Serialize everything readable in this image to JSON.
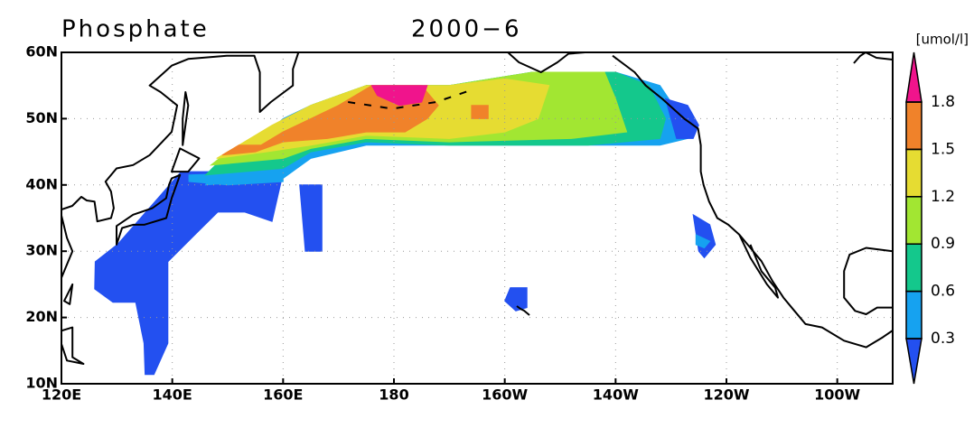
{
  "chart_data": {
    "type": "map",
    "title": "Phosphate",
    "subtitle": "2000−6",
    "unit_label": "[umol/l]",
    "xlim": [
      120,
      270
    ],
    "ylim": [
      10,
      60
    ],
    "xticks": [
      {
        "value": 120,
        "label": "120E"
      },
      {
        "value": 140,
        "label": "140E"
      },
      {
        "value": 160,
        "label": "160E"
      },
      180,
      {
        "value": 200,
        "label": "160W"
      },
      {
        "value": 220,
        "label": "140W"
      },
      {
        "value": 240,
        "label": "120W"
      },
      {
        "value": 260,
        "label": "100W"
      }
    ],
    "yticks": [
      {
        "value": 10,
        "label": "10N"
      },
      {
        "value": 20,
        "label": "20N"
      },
      {
        "value": 30,
        "label": "30N"
      },
      {
        "value": 40,
        "label": "40N"
      },
      {
        "value": 50,
        "label": "50N"
      },
      {
        "value": 60,
        "label": "60N"
      }
    ],
    "grid": true,
    "levels": [
      0.3,
      0.6,
      0.9,
      1.2,
      1.5,
      1.8
    ],
    "colors": [
      "#2350f0",
      "#16a2f0",
      "#14c88c",
      "#a2e632",
      "#e6dc32",
      "#f0822a",
      "#f0148c"
    ],
    "regions": [
      {
        "level": 0,
        "lon": [
          141.6,
          130.2,
          126.1,
          126,
          129.3,
          133.4,
          134.9,
          135.1,
          136.7,
          139.2,
          139.2,
          144.1,
          148.2,
          153.1,
          158,
          159.7,
          158
        ],
        "lat": [
          42,
          31.1,
          28.4,
          24.3,
          22.3,
          22.3,
          16.1,
          11.4,
          11.4,
          16.1,
          28.4,
          32.5,
          35.9,
          35.9,
          34.5,
          40.7,
          42
        ]
      },
      {
        "level": 0,
        "lon": [
          163,
          167,
          167,
          164
        ],
        "lat": [
          40,
          40,
          30,
          30
        ]
      },
      {
        "level": 1,
        "lon": [
          143,
          160,
          160,
          150,
          143
        ],
        "lat": [
          41.5,
          42,
          40.5,
          40,
          40.5
        ]
      },
      {
        "level": 1,
        "lon": [
          146,
          148,
          150,
          156,
          160,
          165,
          175,
          190,
          205,
          220,
          228,
          232,
          233,
          228,
          215,
          205,
          190,
          175,
          165,
          160
        ],
        "lat": [
          40,
          43,
          45,
          47,
          50,
          52,
          55,
          55,
          57,
          57,
          55,
          50,
          47,
          46,
          46,
          46,
          46,
          46,
          44,
          41
        ]
      },
      {
        "level": 2,
        "lon": [
          146,
          149,
          156,
          165,
          175,
          190,
          205,
          220,
          226,
          229,
          228,
          215,
          190,
          175,
          165,
          160
        ],
        "lat": [
          41.5,
          44,
          47.5,
          52,
          55,
          55,
          57,
          57,
          55,
          50,
          47,
          46,
          46,
          46.5,
          45,
          42.5
        ]
      },
      {
        "level": 3,
        "lon": [
          147,
          150,
          157,
          165,
          175,
          190,
          205,
          218,
          220,
          222,
          212,
          190,
          175,
          165,
          160
        ],
        "lat": [
          43,
          45,
          48,
          52,
          55,
          55,
          57,
          57,
          53,
          48,
          47,
          46.5,
          47,
          45.5,
          44
        ]
      },
      {
        "level": 4,
        "lon": [
          148,
          152,
          158,
          165,
          175,
          190,
          200,
          208,
          206,
          200,
          190,
          175,
          165,
          157
        ],
        "lat": [
          44,
          46,
          49,
          52,
          55,
          55,
          56,
          55,
          50,
          48,
          47,
          47.5,
          46,
          45
        ]
      },
      {
        "level": 5,
        "lon": [
          149,
          152,
          156,
          160,
          165,
          170,
          176,
          185,
          188,
          186,
          182,
          175,
          168,
          160,
          155
        ],
        "lat": [
          44.5,
          46,
          46,
          48,
          50,
          52,
          55,
          55,
          52,
          50,
          48,
          48,
          47,
          46.5,
          45
        ]
      },
      {
        "level": 5,
        "lon": [
          194,
          197,
          197,
          194
        ],
        "lat": [
          50,
          50,
          52,
          52
        ]
      },
      {
        "level": 6,
        "lon": [
          176,
          186,
          185,
          181,
          177
        ],
        "lat": [
          55,
          55,
          52.5,
          52,
          53.5
        ]
      },
      {
        "level": 0,
        "lon": [
          229,
          233,
          235,
          234,
          231
        ],
        "lat": [
          53,
          52,
          49,
          47,
          47
        ]
      },
      {
        "level": 0,
        "lon": [
          234,
          237,
          238,
          236,
          235
        ],
        "lat": [
          35.5,
          34,
          31,
          29,
          30
        ]
      },
      {
        "level": 1,
        "lon": [
          234.5,
          237,
          236,
          234.5
        ],
        "lat": [
          32.5,
          31.5,
          30.5,
          31
        ]
      },
      {
        "level": 0,
        "lon": [
          201,
          204,
          204,
          202,
          200
        ],
        "lat": [
          24.5,
          24.5,
          21.5,
          21,
          22.5
        ]
      }
    ]
  }
}
